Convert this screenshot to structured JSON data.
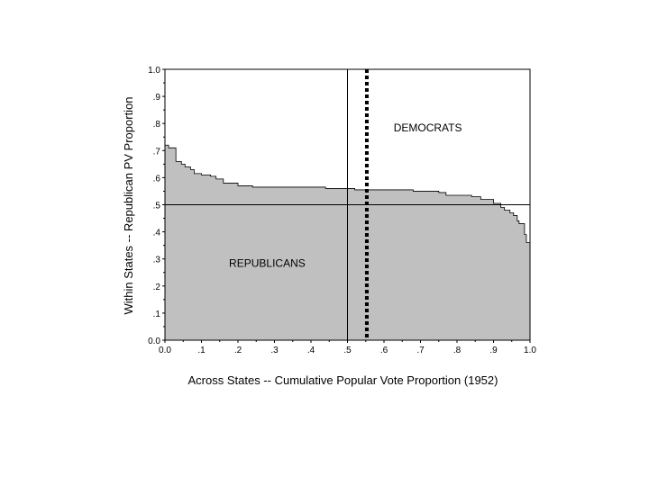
{
  "chart_data": {
    "type": "area",
    "xlabel": "Across States -- Cumulative Popular Vote Proportion (1952)",
    "ylabel": "Within States -- Republican PV Proportion",
    "xlim": [
      0,
      1
    ],
    "ylim": [
      0,
      1
    ],
    "x_ticks": [
      "0.0",
      ".1",
      ".2",
      ".3",
      ".4",
      ".5",
      ".6",
      ".7",
      ".8",
      ".9",
      "1.0"
    ],
    "y_ticks": [
      "0.0",
      ".1",
      ".2",
      ".3",
      ".4",
      ".5",
      ".6",
      ".7",
      ".8",
      ".9",
      "1.0"
    ],
    "grid": false,
    "fill_color": "#c0c0c0",
    "reference_lines": {
      "horizontal_y": 0.5,
      "vertical_solid_x": 0.5,
      "vertical_dotted_x": 0.553
    },
    "annotations": [
      {
        "text": "DEMOCRATS",
        "x": 0.72,
        "y": 0.77
      },
      {
        "text": "REPUBLICANS",
        "x": 0.28,
        "y": 0.27
      }
    ],
    "series": [
      {
        "step": true,
        "x": [
          0.0,
          0.01,
          0.03,
          0.045,
          0.055,
          0.07,
          0.08,
          0.1,
          0.125,
          0.14,
          0.16,
          0.175,
          0.2,
          0.215,
          0.24,
          0.3,
          0.37,
          0.44,
          0.5,
          0.52,
          0.58,
          0.68,
          0.75,
          0.77,
          0.84,
          0.865,
          0.9,
          0.92,
          0.93,
          0.945,
          0.955,
          0.965,
          0.97,
          0.985,
          0.99,
          1.0
        ],
        "y": [
          0.72,
          0.71,
          0.66,
          0.65,
          0.64,
          0.63,
          0.615,
          0.61,
          0.605,
          0.595,
          0.58,
          0.58,
          0.57,
          0.57,
          0.565,
          0.565,
          0.565,
          0.56,
          0.56,
          0.555,
          0.555,
          0.55,
          0.545,
          0.535,
          0.53,
          0.52,
          0.505,
          0.49,
          0.48,
          0.47,
          0.46,
          0.44,
          0.43,
          0.39,
          0.36,
          0.3
        ]
      }
    ]
  }
}
